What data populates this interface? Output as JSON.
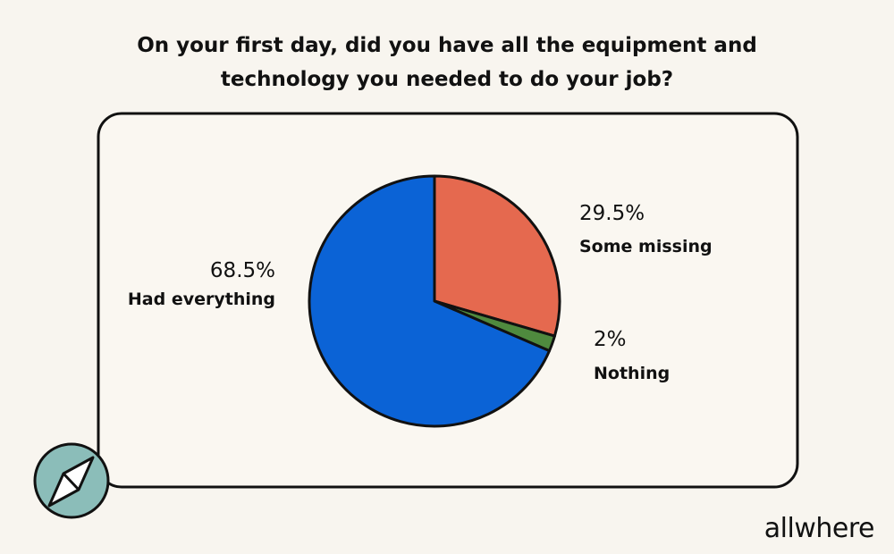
{
  "chart_data": {
    "type": "pie",
    "title": "On your first day, did you have all the equipment and technology you needed to do your job?",
    "categories": [
      "Some missing",
      "Nothing",
      "Had everything"
    ],
    "values": [
      29.5,
      2,
      68.5
    ],
    "value_labels": [
      "29.5%",
      "2%",
      "68.5%"
    ],
    "colors": [
      "#e5694f",
      "#4f8a3e",
      "#0b63d6"
    ]
  },
  "brand": "allwhere"
}
